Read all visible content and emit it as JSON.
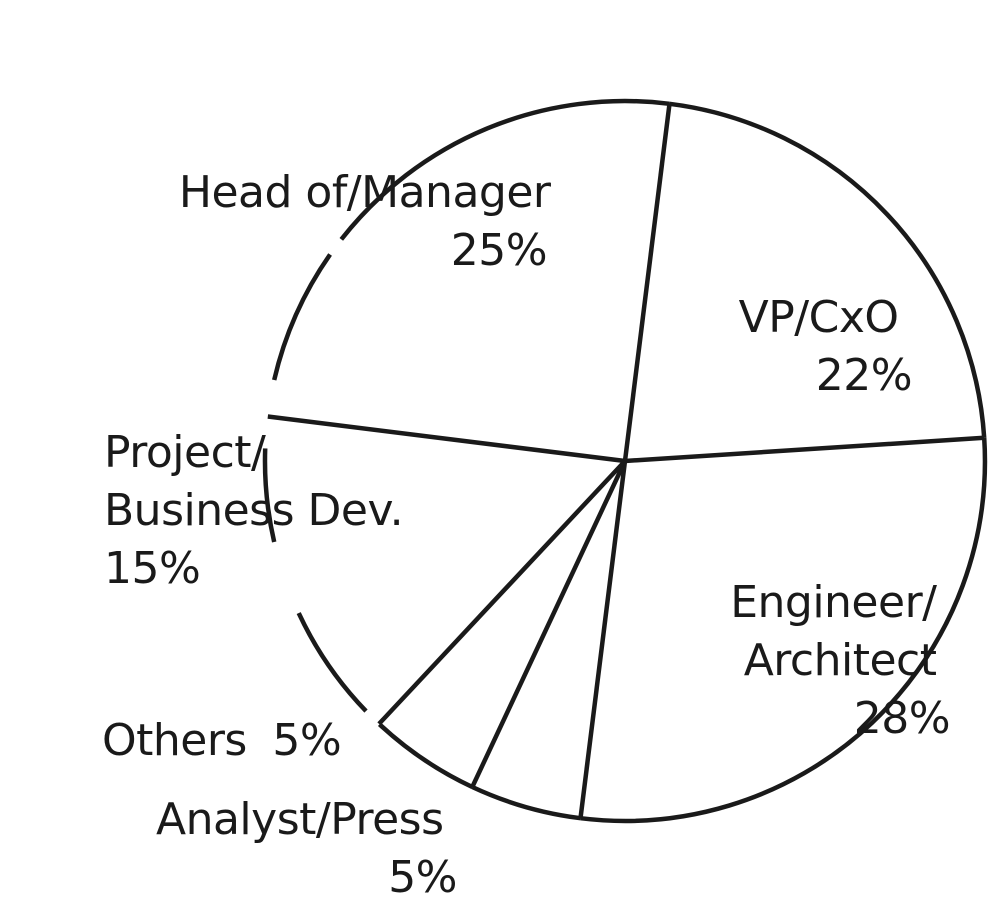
{
  "chart_data": {
    "type": "pie",
    "title": "",
    "colors": {
      "stroke": "#1a1a1a",
      "fill": "#ffffff",
      "text": "#1a1a1a"
    },
    "slices": [
      {
        "name": "VP/CxO",
        "value": 22,
        "label": "22%"
      },
      {
        "name": "Engineer/ Architect",
        "value": 28,
        "label": "28%"
      },
      {
        "name": "Analyst/Press",
        "value": 5,
        "label": "5%"
      },
      {
        "name": "Others",
        "value": 5,
        "label": "5%"
      },
      {
        "name": "Project/ Business Dev.",
        "value": 15,
        "label": "15%"
      },
      {
        "name": "Head of/Manager",
        "value": 25,
        "label": "25%"
      }
    ]
  }
}
